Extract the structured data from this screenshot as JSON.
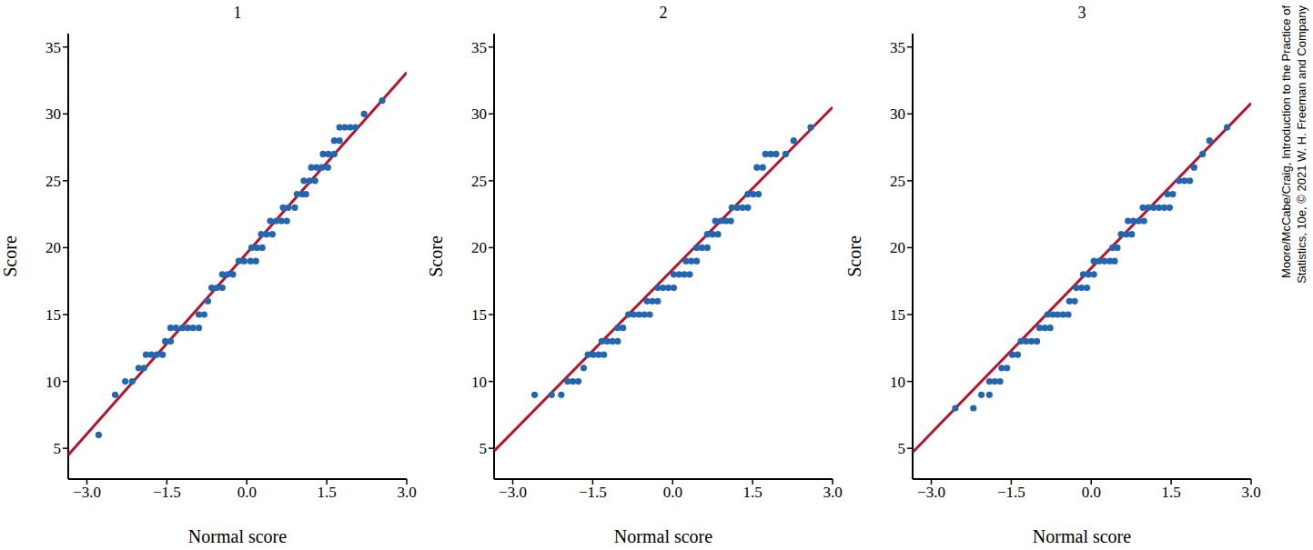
{
  "chart_data": [
    {
      "type": "scatter",
      "title": "1",
      "x_label": "Normal score",
      "y_label": "Score",
      "xlim": [
        -3.35,
        3.0
      ],
      "xticks": [
        {
          "value": -3,
          "label": "−3.0"
        },
        {
          "value": -1.5,
          "label": "−1.5"
        },
        {
          "value": 0,
          "label": "0.0"
        },
        {
          "value": 1.5,
          "label": "1.5"
        },
        {
          "value": 3,
          "label": "3.0"
        }
      ],
      "ylim": [
        2.7,
        36
      ],
      "yticks": [
        5,
        10,
        15,
        20,
        25,
        30,
        35
      ],
      "series": [
        {
          "type": "line",
          "color": "#b5152b",
          "line_style": "solid",
          "x": [
            -3.35,
            3.0
          ],
          "values": [
            4.5,
            33.1
          ]
        },
        {
          "type": "scatter",
          "color": "#2166b0",
          "marker": "circle",
          "x": [
            -2.78,
            -2.47,
            -2.28,
            -2.15,
            -2.03,
            -1.93,
            -1.89,
            -1.79,
            -1.69,
            -1.58,
            -1.53,
            -1.43,
            -1.43,
            -1.33,
            -1.21,
            -1.11,
            -1.01,
            -0.9,
            -0.9,
            -0.8,
            -0.73,
            -0.66,
            -0.56,
            -0.46,
            -0.46,
            -0.36,
            -0.26,
            -0.15,
            -0.05,
            0.07,
            0.17,
            0.09,
            0.19,
            0.29,
            0.27,
            0.37,
            0.48,
            0.44,
            0.55,
            0.65,
            0.75,
            0.68,
            0.78,
            0.9,
            0.94,
            1.04,
            1.11,
            1.07,
            1.18,
            1.28,
            1.21,
            1.31,
            1.41,
            1.52,
            1.43,
            1.53,
            1.64,
            1.64,
            1.74,
            1.74,
            1.84,
            1.94,
            2.04,
            2.2,
            2.54
          ],
          "values": [
            6,
            9,
            10,
            10,
            11,
            11,
            12,
            12,
            12,
            12,
            13,
            13,
            14,
            14,
            14,
            14,
            14,
            14,
            15,
            15,
            16,
            17,
            17,
            17,
            18,
            18,
            18,
            19,
            19,
            19,
            19,
            20,
            20,
            20,
            21,
            21,
            21,
            22,
            22,
            22,
            22,
            23,
            23,
            23,
            24,
            24,
            24,
            25,
            25,
            25,
            26,
            26,
            26,
            26,
            27,
            27,
            27,
            28,
            28,
            29,
            29,
            29,
            29,
            30,
            31
          ]
        }
      ]
    },
    {
      "type": "scatter",
      "title": "2",
      "x_label": "Normal score",
      "y_label": "Score",
      "xlim": [
        -3.35,
        3.0
      ],
      "xticks": [
        {
          "value": -3,
          "label": "−3.0"
        },
        {
          "value": -1.5,
          "label": "−1.5"
        },
        {
          "value": 0,
          "label": "0.0"
        },
        {
          "value": 1.5,
          "label": "1.5"
        },
        {
          "value": 3,
          "label": "3.0"
        }
      ],
      "ylim": [
        2.7,
        36
      ],
      "yticks": [
        5,
        10,
        15,
        20,
        25,
        30,
        35
      ],
      "series": [
        {
          "type": "line",
          "color": "#b5152b",
          "line_style": "solid",
          "x": [
            -3.35,
            3.0
          ],
          "values": [
            4.8,
            30.5
          ]
        },
        {
          "type": "scatter",
          "color": "#2166b0",
          "marker": "circle",
          "x": [
            -2.59,
            -2.27,
            -2.09,
            -1.97,
            -1.87,
            -1.77,
            -1.67,
            -1.59,
            -1.49,
            -1.39,
            -1.29,
            -1.33,
            -1.23,
            -1.13,
            -1.03,
            -1.03,
            -0.93,
            -0.83,
            -0.73,
            -0.63,
            -0.53,
            -0.43,
            -0.48,
            -0.38,
            -0.28,
            -0.28,
            -0.18,
            -0.08,
            0.02,
            0.02,
            0.12,
            0.22,
            0.32,
            0.25,
            0.35,
            0.45,
            0.45,
            0.55,
            0.65,
            0.65,
            0.75,
            0.85,
            0.8,
            0.9,
            1.0,
            1.09,
            1.11,
            1.21,
            1.31,
            1.41,
            1.41,
            1.51,
            1.61,
            1.58,
            1.69,
            1.74,
            1.84,
            1.94,
            2.12,
            2.27,
            2.59
          ],
          "values": [
            9,
            9,
            9,
            10,
            10,
            10,
            11,
            12,
            12,
            12,
            12,
            13,
            13,
            13,
            13,
            14,
            14,
            15,
            15,
            15,
            15,
            15,
            16,
            16,
            16,
            17,
            17,
            17,
            17,
            18,
            18,
            18,
            18,
            19,
            19,
            19,
            20,
            20,
            20,
            21,
            21,
            21,
            22,
            22,
            22,
            22,
            23,
            23,
            23,
            23,
            24,
            24,
            24,
            26,
            26,
            27,
            27,
            27,
            27,
            28,
            29
          ]
        }
      ]
    },
    {
      "type": "scatter",
      "title": "3",
      "x_label": "Normal score",
      "y_label": "Score",
      "xlim": [
        -3.35,
        3.0
      ],
      "xticks": [
        {
          "value": -3,
          "label": "−3.0"
        },
        {
          "value": -1.5,
          "label": "−1.5"
        },
        {
          "value": 0,
          "label": "0.0"
        },
        {
          "value": 1.5,
          "label": "1.5"
        },
        {
          "value": 3,
          "label": "3.0"
        }
      ],
      "ylim": [
        2.7,
        36
      ],
      "yticks": [
        5,
        10,
        15,
        20,
        25,
        30,
        35
      ],
      "series": [
        {
          "type": "line",
          "color": "#b5152b",
          "line_style": "solid",
          "x": [
            -3.35,
            3.0
          ],
          "values": [
            4.7,
            30.8
          ]
        },
        {
          "type": "scatter",
          "color": "#2166b0",
          "marker": "circle",
          "x": [
            -2.55,
            -2.21,
            -2.06,
            -1.91,
            -1.91,
            -1.81,
            -1.71,
            -1.68,
            -1.58,
            -1.48,
            -1.38,
            -1.32,
            -1.22,
            -1.12,
            -1.02,
            -0.97,
            -0.87,
            -0.77,
            -0.82,
            -0.72,
            -0.63,
            -0.53,
            -0.43,
            -0.41,
            -0.31,
            -0.28,
            -0.18,
            -0.08,
            -0.15,
            -0.05,
            0.05,
            0.05,
            0.15,
            0.25,
            0.35,
            0.44,
            0.4,
            0.49,
            0.56,
            0.66,
            0.76,
            0.69,
            0.79,
            0.89,
            0.99,
            0.97,
            1.07,
            1.17,
            1.27,
            1.37,
            1.47,
            1.43,
            1.53,
            1.65,
            1.75,
            1.85,
            1.93,
            2.09,
            2.22,
            2.55
          ],
          "values": [
            8,
            8,
            9,
            9,
            10,
            10,
            10,
            11,
            11,
            12,
            12,
            13,
            13,
            13,
            13,
            14,
            14,
            14,
            15,
            15,
            15,
            15,
            15,
            16,
            16,
            17,
            17,
            17,
            18,
            18,
            18,
            19,
            19,
            19,
            19,
            19,
            20,
            20,
            21,
            21,
            21,
            22,
            22,
            22,
            22,
            23,
            23,
            23,
            23,
            23,
            23,
            24,
            24,
            25,
            25,
            25,
            26,
            27,
            28,
            29
          ]
        }
      ]
    }
  ],
  "credit": [
    "Moore/McCabe/Craig, Introduction to the Practice of",
    "Statistics, 10e, © 2021 W. H. Freeman and Company"
  ]
}
